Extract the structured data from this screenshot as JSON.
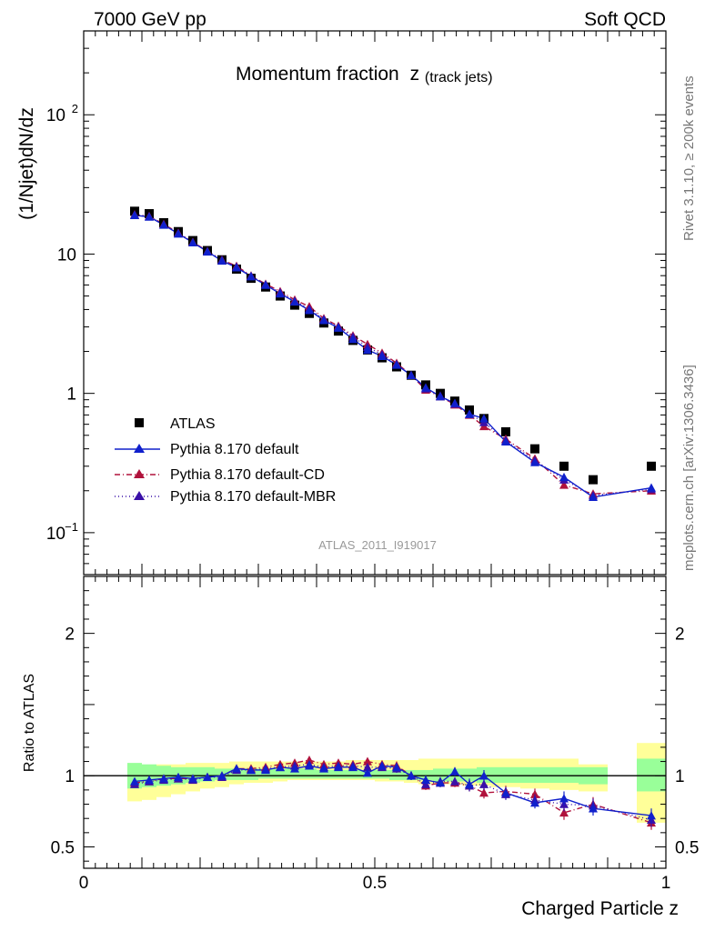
{
  "header": {
    "left": "7000 GeV pp",
    "right": "Soft QCD"
  },
  "side_labels": {
    "top": "Rivet 3.1.10, ≥ 200k events",
    "bottom": "mcplots.cern.ch [arXiv:1306.3436]"
  },
  "colors": {
    "data": "#000000",
    "default": "#1020cc",
    "cd": "#b0123c",
    "mbr": "#3a10a8",
    "band_outer": "#ffff99",
    "band_inner": "#99ff99"
  },
  "chart_data": [
    {
      "type": "scatter",
      "title": "Momentum fraction",
      "title_var": "z",
      "title_sub": "(track jets)",
      "ylabel": "(1/Njet)dN/dz",
      "yscale": "log",
      "ylim": [
        0.05,
        400
      ],
      "xlim": [
        0,
        1
      ],
      "y_ticks": [
        {
          "value": 100,
          "label": "10",
          "exp": "2"
        },
        {
          "value": 10,
          "label": "10",
          "exp": ""
        },
        {
          "value": 1,
          "label": "1",
          "exp": ""
        },
        {
          "value": 0.1,
          "label": "10",
          "exp": "−1"
        }
      ],
      "analysis_label": "ATLAS_2011_I919017",
      "x": [
        0.0875,
        0.1125,
        0.1375,
        0.1625,
        0.1875,
        0.2125,
        0.2375,
        0.2625,
        0.2875,
        0.3125,
        0.3375,
        0.3625,
        0.3875,
        0.4125,
        0.4375,
        0.4625,
        0.4875,
        0.5125,
        0.5375,
        0.5625,
        0.5875,
        0.6125,
        0.6375,
        0.6625,
        0.6875,
        0.725,
        0.775,
        0.825,
        0.875,
        0.975
      ],
      "series": [
        {
          "name": "ATLAS",
          "marker": "square",
          "values": [
            20.3,
            19.5,
            16.8,
            14.5,
            12.5,
            10.6,
            9.1,
            7.8,
            6.7,
            5.8,
            5.0,
            4.3,
            3.75,
            3.2,
            2.8,
            2.4,
            2.05,
            1.8,
            1.55,
            1.35,
            1.15,
            1.0,
            0.88,
            0.76,
            0.66,
            0.53,
            0.4,
            0.3,
            0.24,
            0.3
          ]
        },
        {
          "name": "Pythia 8.170 default",
          "marker": "triangle",
          "line": "solid",
          "values": [
            19.0,
            18.5,
            16.2,
            14.0,
            12.1,
            10.4,
            8.95,
            8.0,
            6.9,
            6.0,
            5.2,
            4.55,
            3.95,
            3.35,
            2.95,
            2.45,
            2.05,
            1.85,
            1.6,
            1.35,
            1.1,
            0.95,
            0.85,
            0.71,
            0.66,
            0.45,
            0.32,
            0.25,
            0.18,
            0.21
          ]
        },
        {
          "name": "Pythia 8.170 default-CD",
          "marker": "triangle",
          "line": "dashdot",
          "values": [
            19.2,
            18.7,
            16.4,
            14.2,
            12.2,
            10.5,
            9.1,
            8.2,
            7.0,
            6.1,
            5.4,
            4.7,
            4.2,
            3.45,
            3.05,
            2.6,
            2.25,
            1.95,
            1.65,
            1.35,
            1.06,
            0.95,
            0.83,
            0.7,
            0.58,
            0.47,
            0.34,
            0.22,
            0.19,
            0.2
          ]
        },
        {
          "name": "Pythia 8.170 default-MBR",
          "marker": "triangle",
          "line": "dotted",
          "values": [
            19.1,
            18.6,
            16.3,
            14.1,
            12.1,
            10.45,
            9.05,
            8.1,
            6.95,
            6.05,
            5.3,
            4.6,
            4.05,
            3.4,
            3.0,
            2.55,
            2.15,
            1.9,
            1.62,
            1.35,
            1.08,
            0.96,
            0.84,
            0.71,
            0.62,
            0.46,
            0.33,
            0.24,
            0.185,
            0.205
          ]
        }
      ]
    },
    {
      "type": "scatter",
      "ylabel": "Ratio to ATLAS",
      "xlabel": "Charged Particle z",
      "ylim": [
        0.35,
        2.4
      ],
      "xlim": [
        0,
        1
      ],
      "x_ticks": [
        {
          "value": 0,
          "label": "0"
        },
        {
          "value": 0.5,
          "label": "0.5"
        },
        {
          "value": 1,
          "label": "1"
        }
      ],
      "y_ticks": [
        {
          "value": 2,
          "label": "2"
        },
        {
          "value": 1,
          "label": "1"
        },
        {
          "value": 0.5,
          "label": "0.5"
        }
      ],
      "band_edges": [
        0.075,
        0.1,
        0.125,
        0.15,
        0.175,
        0.2,
        0.225,
        0.25,
        0.275,
        0.3,
        0.325,
        0.35,
        0.375,
        0.4,
        0.425,
        0.45,
        0.475,
        0.5,
        0.525,
        0.55,
        0.575,
        0.6,
        0.625,
        0.65,
        0.675,
        0.7,
        0.75,
        0.8,
        0.85,
        0.9,
        0.95,
        1.0
      ],
      "band_skip": [
        29
      ],
      "band_inner": [
        [
          0.91,
          1.09
        ],
        [
          0.92,
          1.08
        ],
        [
          0.93,
          1.07
        ],
        [
          0.94,
          1.06
        ],
        [
          0.95,
          1.06
        ],
        [
          0.96,
          1.06
        ],
        [
          0.97,
          1.05
        ],
        [
          0.97,
          1.05
        ],
        [
          0.97,
          1.05
        ],
        [
          0.98,
          1.05
        ],
        [
          0.98,
          1.05
        ],
        [
          0.98,
          1.05
        ],
        [
          0.98,
          1.05
        ],
        [
          0.98,
          1.04
        ],
        [
          0.98,
          1.04
        ],
        [
          0.98,
          1.04
        ],
        [
          0.98,
          1.04
        ],
        [
          0.98,
          1.04
        ],
        [
          0.97,
          1.04
        ],
        [
          0.97,
          1.04
        ],
        [
          0.97,
          1.04
        ],
        [
          0.96,
          1.05
        ],
        [
          0.96,
          1.05
        ],
        [
          0.96,
          1.05
        ],
        [
          0.95,
          1.06
        ],
        [
          0.95,
          1.06
        ],
        [
          0.95,
          1.06
        ],
        [
          0.95,
          1.06
        ],
        [
          0.94,
          1.06
        ],
        [
          1.0,
          1.0
        ],
        [
          0.89,
          1.12
        ]
      ],
      "band_outer": [
        [
          0.82,
          1.06
        ],
        [
          0.83,
          1.07
        ],
        [
          0.85,
          1.08
        ],
        [
          0.87,
          1.08
        ],
        [
          0.89,
          1.09
        ],
        [
          0.91,
          1.09
        ],
        [
          0.92,
          1.09
        ],
        [
          0.94,
          1.1
        ],
        [
          0.95,
          1.1
        ],
        [
          0.95,
          1.1
        ],
        [
          0.96,
          1.1
        ],
        [
          0.97,
          1.1
        ],
        [
          0.97,
          1.1
        ],
        [
          0.97,
          1.1
        ],
        [
          0.97,
          1.1
        ],
        [
          0.97,
          1.11
        ],
        [
          0.97,
          1.11
        ],
        [
          0.96,
          1.11
        ],
        [
          0.96,
          1.11
        ],
        [
          0.95,
          1.11
        ],
        [
          0.94,
          1.12
        ],
        [
          0.94,
          1.12
        ],
        [
          0.94,
          1.12
        ],
        [
          0.93,
          1.12
        ],
        [
          0.93,
          1.12
        ],
        [
          0.92,
          1.12
        ],
        [
          0.91,
          1.12
        ],
        [
          0.9,
          1.12
        ],
        [
          0.89,
          1.08
        ],
        [
          1.0,
          1.0
        ],
        [
          0.67,
          1.23
        ]
      ],
      "series": [
        {
          "name": "Pythia 8.170 default",
          "values": [
            0.96,
            0.97,
            0.98,
            0.99,
            0.98,
            0.99,
            1.0,
            1.05,
            1.04,
            1.04,
            1.06,
            1.05,
            1.07,
            1.05,
            1.06,
            1.06,
            1.02,
            1.07,
            1.06,
            1.0,
            0.97,
            0.95,
            1.03,
            0.94,
            1.0,
            0.88,
            0.81,
            0.84,
            0.77,
            0.72
          ],
          "err": [
            0.02,
            0.02,
            0.02,
            0.02,
            0.02,
            0.02,
            0.02,
            0.02,
            0.02,
            0.02,
            0.02,
            0.02,
            0.02,
            0.02,
            0.02,
            0.02,
            0.02,
            0.02,
            0.03,
            0.03,
            0.03,
            0.03,
            0.03,
            0.04,
            0.04,
            0.04,
            0.04,
            0.05,
            0.05,
            0.05
          ]
        },
        {
          "name": "Pythia 8.170 default-CD",
          "values": [
            0.95,
            0.96,
            0.98,
            0.98,
            0.98,
            0.99,
            1.0,
            1.05,
            1.05,
            1.06,
            1.08,
            1.09,
            1.11,
            1.08,
            1.09,
            1.08,
            1.1,
            1.08,
            1.07,
            1.0,
            0.93,
            0.95,
            0.95,
            0.93,
            0.88,
            0.89,
            0.87,
            0.74,
            0.8,
            0.67
          ],
          "err": [
            0.02,
            0.02,
            0.02,
            0.02,
            0.02,
            0.02,
            0.02,
            0.02,
            0.02,
            0.02,
            0.02,
            0.02,
            0.02,
            0.02,
            0.02,
            0.02,
            0.02,
            0.02,
            0.03,
            0.03,
            0.03,
            0.03,
            0.03,
            0.04,
            0.04,
            0.04,
            0.04,
            0.05,
            0.05,
            0.05
          ]
        },
        {
          "name": "Pythia 8.170 default-MBR",
          "values": [
            0.94,
            0.96,
            0.97,
            0.98,
            0.97,
            0.99,
            0.99,
            1.04,
            1.04,
            1.05,
            1.06,
            1.07,
            1.08,
            1.06,
            1.07,
            1.07,
            1.06,
            1.06,
            1.05,
            1.0,
            0.94,
            0.96,
            0.96,
            0.93,
            0.94,
            0.87,
            0.83,
            0.8,
            0.79,
            0.69
          ],
          "err": [
            0.02,
            0.02,
            0.02,
            0.02,
            0.02,
            0.02,
            0.02,
            0.02,
            0.02,
            0.02,
            0.02,
            0.02,
            0.02,
            0.02,
            0.02,
            0.02,
            0.02,
            0.02,
            0.03,
            0.03,
            0.03,
            0.03,
            0.03,
            0.04,
            0.04,
            0.04,
            0.04,
            0.05,
            0.05,
            0.05
          ]
        }
      ]
    }
  ]
}
